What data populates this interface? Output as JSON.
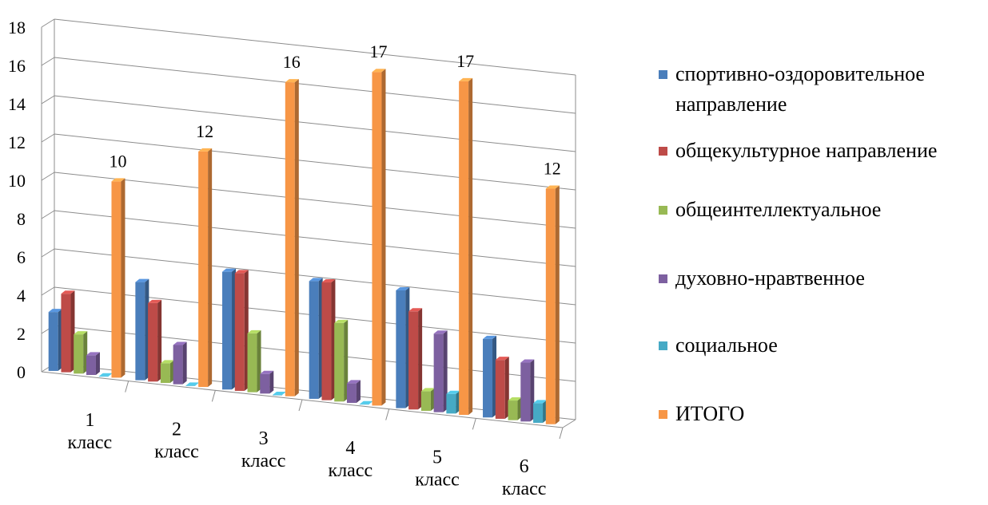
{
  "chart_data": {
    "type": "bar",
    "title": "",
    "xlabel": "",
    "ylabel": "",
    "ylim": [
      0,
      18
    ],
    "yticks": [
      0,
      2,
      4,
      6,
      8,
      10,
      12,
      14,
      16,
      18
    ],
    "grid": true,
    "legend_position": "right",
    "categories": [
      "1 класс",
      "2 класс",
      "3 класс",
      "4 класс",
      "5 класс",
      "6 класс"
    ],
    "series": [
      {
        "name": "спортивно-оздоровительное направление",
        "color": "#4a7ebb",
        "values": [
          3,
          5,
          6,
          6,
          6,
          4
        ]
      },
      {
        "name": "общекультурное направление",
        "color": "#be4b48",
        "values": [
          4,
          4,
          6,
          6,
          5,
          3
        ]
      },
      {
        "name": "общеинтеллектуальное",
        "color": "#98b954",
        "values": [
          2,
          1,
          3,
          4,
          1,
          1
        ]
      },
      {
        "name": "духовно-нравтвенное",
        "color": "#7d60a0",
        "values": [
          1,
          2,
          1,
          1,
          4,
          3
        ]
      },
      {
        "name": "социальное",
        "color": "#46aac5",
        "values": [
          0,
          0,
          0,
          0,
          1,
          1
        ]
      },
      {
        "name": "ИТОГО",
        "color": "#f79646",
        "values": [
          10,
          12,
          16,
          17,
          17,
          12
        ]
      }
    ],
    "data_labels": {
      "series": "ИТОГО",
      "values": [
        "10",
        "12",
        "16",
        "17",
        "17",
        "12"
      ]
    }
  }
}
